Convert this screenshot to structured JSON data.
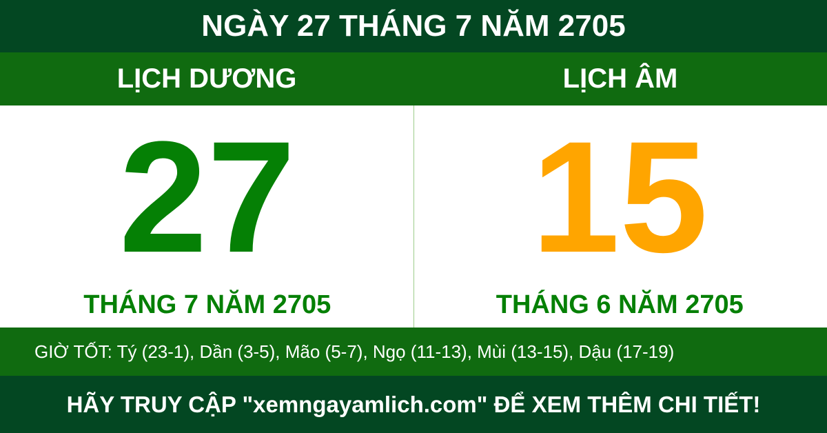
{
  "title": "NGÀY 27 THÁNG 7 NĂM 2705",
  "solar": {
    "heading": "LỊCH DƯƠNG",
    "day": "27",
    "month_year": "THÁNG 7 NĂM 2705",
    "color": "#058005"
  },
  "lunar": {
    "heading": "LỊCH ÂM",
    "day": "15",
    "month_year": "THÁNG 6 NĂM 2705",
    "color": "#ffa500"
  },
  "good_hours": "GIỜ TỐT: Tý (23-1), Dần (3-5), Mão (5-7), Ngọ (11-13), Mùi (13-15), Dậu (17-19)",
  "footer": "HÃY TRUY CẬP \"xemngayamlich.com\" ĐỂ XEM THÊM CHI TIẾT!",
  "colors": {
    "dark_green": "#034722",
    "green": "#106b10",
    "text_green": "#058005",
    "orange": "#ffa500"
  }
}
